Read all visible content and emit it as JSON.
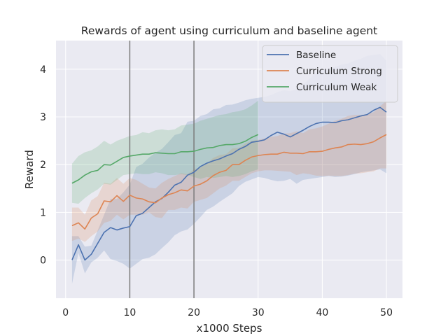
{
  "chart_data": {
    "type": "line",
    "title": "Rewards of agent using curriculum and baseline agent",
    "xlabel": "x1000 Steps",
    "ylabel": "Reward",
    "xlim": [
      -1.5,
      52.5
    ],
    "ylim": [
      -0.8,
      4.6
    ],
    "xticks": [
      0,
      10,
      20,
      30,
      40,
      50
    ],
    "yticks": [
      0,
      1,
      2,
      3,
      4
    ],
    "grid": true,
    "legend_position": "top-right",
    "vlines": [
      10,
      20
    ],
    "series": [
      {
        "name": "Baseline",
        "color": "#4c72b0",
        "x": [
          1,
          2,
          3,
          4,
          5,
          6,
          7,
          8,
          9,
          10,
          11,
          12,
          13,
          14,
          15,
          16,
          17,
          18,
          19,
          20,
          21,
          22,
          23,
          24,
          25,
          26,
          27,
          28,
          29,
          30,
          31,
          32,
          33,
          34,
          35,
          36,
          37,
          38,
          39,
          40,
          41,
          42,
          43,
          44,
          45,
          46,
          47,
          48,
          49,
          50
        ],
        "y": [
          0.0,
          0.32,
          0.0,
          0.12,
          0.35,
          0.58,
          0.68,
          0.63,
          0.67,
          0.7,
          0.93,
          0.98,
          1.1,
          1.22,
          1.29,
          1.42,
          1.57,
          1.63,
          1.78,
          1.84,
          1.96,
          2.03,
          2.08,
          2.12,
          2.18,
          2.23,
          2.32,
          2.38,
          2.47,
          2.49,
          2.52,
          2.61,
          2.68,
          2.64,
          2.58,
          2.65,
          2.72,
          2.8,
          2.86,
          2.89,
          2.89,
          2.88,
          2.92,
          2.94,
          2.98,
          3.02,
          3.05,
          3.14,
          3.2,
          3.1
        ],
        "lower": [
          -0.5,
          0.15,
          -0.28,
          -0.05,
          0.05,
          0.2,
          0.02,
          -0.02,
          -0.08,
          -0.18,
          -0.08,
          0.02,
          0.05,
          0.12,
          0.25,
          0.37,
          0.52,
          0.6,
          0.64,
          0.76,
          0.9,
          1.05,
          1.12,
          1.22,
          1.31,
          1.4,
          1.55,
          1.64,
          1.69,
          1.74,
          1.72,
          1.68,
          1.65,
          1.66,
          1.7,
          1.6,
          1.68,
          1.7,
          1.72,
          1.74,
          1.76,
          1.74,
          1.75,
          1.77,
          1.8,
          1.84,
          1.86,
          1.88,
          1.9,
          1.82
        ],
        "upper": [
          0.5,
          0.5,
          0.28,
          0.3,
          0.62,
          0.95,
          1.28,
          1.28,
          1.42,
          1.58,
          1.95,
          2.02,
          2.15,
          2.25,
          2.33,
          2.47,
          2.62,
          2.66,
          2.9,
          2.92,
          3.02,
          3.06,
          3.16,
          3.18,
          3.25,
          3.26,
          3.3,
          3.35,
          3.38,
          3.4,
          3.42,
          3.46,
          3.52,
          3.56,
          3.54,
          3.58,
          3.68,
          3.8,
          3.92,
          3.98,
          4.02,
          4.05,
          4.1,
          4.12,
          4.18,
          4.22,
          4.28,
          4.3,
          4.32,
          4.18
        ]
      },
      {
        "name": "Curriculum Strong",
        "color": "#dd8452",
        "x": [
          1,
          2,
          3,
          4,
          5,
          6,
          7,
          8,
          9,
          10,
          11,
          12,
          13,
          14,
          15,
          16,
          17,
          18,
          19,
          20,
          21,
          22,
          23,
          24,
          25,
          26,
          27,
          28,
          29,
          30,
          31,
          32,
          33,
          34,
          35,
          36,
          37,
          38,
          39,
          40,
          41,
          42,
          43,
          44,
          45,
          46,
          47,
          48,
          49,
          50
        ],
        "y": [
          0.72,
          0.78,
          0.65,
          0.88,
          0.97,
          1.24,
          1.22,
          1.35,
          1.23,
          1.36,
          1.3,
          1.28,
          1.22,
          1.2,
          1.3,
          1.37,
          1.41,
          1.47,
          1.45,
          1.55,
          1.59,
          1.66,
          1.77,
          1.84,
          1.88,
          2.0,
          2.0,
          2.09,
          2.16,
          2.19,
          2.21,
          2.22,
          2.22,
          2.26,
          2.24,
          2.24,
          2.23,
          2.27,
          2.27,
          2.28,
          2.32,
          2.35,
          2.37,
          2.42,
          2.43,
          2.42,
          2.44,
          2.48,
          2.56,
          2.63
        ],
        "lower": [
          0.4,
          0.45,
          0.38,
          0.5,
          0.6,
          0.78,
          0.82,
          0.95,
          0.85,
          0.95,
          0.95,
          0.95,
          1.0,
          0.9,
          0.88,
          1.05,
          1.05,
          1.1,
          1.08,
          1.22,
          1.26,
          1.3,
          1.4,
          1.5,
          1.56,
          1.66,
          1.66,
          1.74,
          1.82,
          1.86,
          1.88,
          1.88,
          1.87,
          1.86,
          1.85,
          1.78,
          1.82,
          1.8,
          1.77,
          1.76,
          1.77,
          1.76,
          1.76,
          1.78,
          1.81,
          1.82,
          1.84,
          1.86,
          1.92,
          1.92
        ],
        "upper": [
          1.1,
          1.1,
          0.95,
          1.25,
          1.34,
          1.62,
          1.6,
          1.72,
          1.6,
          1.72,
          1.68,
          1.6,
          1.52,
          1.5,
          1.62,
          1.7,
          1.76,
          1.82,
          1.8,
          1.9,
          1.94,
          2.02,
          2.14,
          2.2,
          2.22,
          2.34,
          2.35,
          2.44,
          2.5,
          2.52,
          2.55,
          2.58,
          2.6,
          2.65,
          2.66,
          2.7,
          2.66,
          2.74,
          2.76,
          2.8,
          2.86,
          2.92,
          2.96,
          3.02,
          3.04,
          3.04,
          3.06,
          3.1,
          3.22,
          3.34
        ]
      },
      {
        "name": "Curriculum Weak",
        "color": "#55a868",
        "x": [
          1,
          2,
          3,
          4,
          5,
          6,
          7,
          8,
          9,
          10,
          11,
          12,
          13,
          14,
          15,
          16,
          17,
          18,
          19,
          20,
          21,
          22,
          23,
          24,
          25,
          26,
          27,
          28,
          29,
          30
        ],
        "y": [
          1.61,
          1.68,
          1.78,
          1.85,
          1.88,
          2.0,
          1.99,
          2.07,
          2.15,
          2.18,
          2.2,
          2.22,
          2.22,
          2.25,
          2.24,
          2.23,
          2.23,
          2.27,
          2.27,
          2.28,
          2.32,
          2.35,
          2.36,
          2.4,
          2.42,
          2.42,
          2.44,
          2.49,
          2.57,
          2.63
        ],
        "lower": [
          1.2,
          1.18,
          1.3,
          1.4,
          1.48,
          1.6,
          1.58,
          1.68,
          1.78,
          1.8,
          1.82,
          1.8,
          1.8,
          1.84,
          1.82,
          1.78,
          1.78,
          1.8,
          1.78,
          1.74,
          1.7,
          1.74,
          1.72,
          1.74,
          1.76,
          1.74,
          1.76,
          1.8,
          1.86,
          1.9
        ],
        "upper": [
          2.02,
          2.18,
          2.26,
          2.3,
          2.38,
          2.5,
          2.42,
          2.5,
          2.55,
          2.6,
          2.62,
          2.68,
          2.66,
          2.72,
          2.74,
          2.72,
          2.74,
          2.82,
          2.84,
          2.86,
          2.92,
          2.96,
          3.0,
          3.04,
          3.06,
          3.1,
          3.12,
          3.16,
          3.24,
          3.34
        ]
      }
    ]
  }
}
